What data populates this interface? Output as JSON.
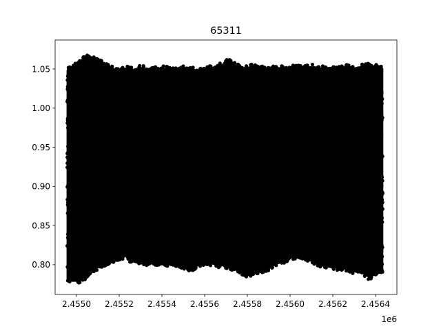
{
  "chart_data": {
    "type": "scatter",
    "title": "65311",
    "xlabel": "",
    "ylabel": "",
    "x_offset_label": "1e6",
    "xlim": [
      2.4549,
      2.4565
    ],
    "ylim": [
      0.762,
      1.087
    ],
    "x_ticks": [
      2.455,
      2.4552,
      2.4554,
      2.4556,
      2.4558,
      2.456,
      2.4562,
      2.4564
    ],
    "x_tick_labels": [
      "2.4550",
      "2.4552",
      "2.4554",
      "2.4556",
      "2.4558",
      "2.4560",
      "2.4562",
      "2.4564"
    ],
    "y_ticks": [
      0.8,
      0.85,
      0.9,
      0.95,
      1.0,
      1.05
    ],
    "y_tick_labels": [
      "0.80",
      "0.85",
      "0.90",
      "0.95",
      "1.00",
      "1.05"
    ],
    "grid": false,
    "marker_color": "#000000",
    "series": [
      {
        "segments": [
          {
            "x_start": 2.45496,
            "x_end": 2.45556,
            "y_min": 0.776,
            "y_max": 1.072
          },
          {
            "x_start": 2.45557,
            "x_end": 2.45632,
            "y_min": 0.782,
            "y_max": 1.064
          },
          {
            "x_start": 2.45633,
            "x_end": 2.45643,
            "y_min": 0.779,
            "y_max": 1.058
          }
        ],
        "envelope_top": [
          [
            2.45496,
            1.052
          ],
          [
            2.455,
            1.058
          ],
          [
            2.45503,
            1.065
          ],
          [
            2.45505,
            1.072
          ],
          [
            2.45508,
            1.066
          ],
          [
            2.45511,
            1.062
          ],
          [
            2.45514,
            1.057
          ],
          [
            2.45517,
            1.053
          ],
          [
            2.4552,
            1.05
          ],
          [
            2.45523,
            1.054
          ],
          [
            2.45526,
            1.052
          ],
          [
            2.4553,
            1.055
          ],
          [
            2.45535,
            1.053
          ],
          [
            2.4554,
            1.054
          ],
          [
            2.45545,
            1.052
          ],
          [
            2.4555,
            1.054
          ],
          [
            2.45555,
            1.052
          ],
          [
            2.45557,
            1.05
          ],
          [
            2.4556,
            1.052
          ],
          [
            2.45565,
            1.056
          ],
          [
            2.45568,
            1.058
          ],
          [
            2.45571,
            1.064
          ],
          [
            2.45574,
            1.058
          ],
          [
            2.45578,
            1.054
          ],
          [
            2.45582,
            1.056
          ],
          [
            2.45586,
            1.054
          ],
          [
            2.4559,
            1.052
          ],
          [
            2.45594,
            1.055
          ],
          [
            2.45598,
            1.053
          ],
          [
            2.45602,
            1.055
          ],
          [
            2.45606,
            1.054
          ],
          [
            2.4561,
            1.056
          ],
          [
            2.45614,
            1.054
          ],
          [
            2.45618,
            1.055
          ],
          [
            2.45622,
            1.052
          ],
          [
            2.45626,
            1.056
          ],
          [
            2.4563,
            1.054
          ],
          [
            2.45633,
            1.056
          ],
          [
            2.45636,
            1.058
          ],
          [
            2.4564,
            1.056
          ],
          [
            2.45643,
            1.054
          ]
        ],
        "envelope_bottom": [
          [
            2.45496,
            0.778
          ],
          [
            2.45499,
            0.775
          ],
          [
            2.45502,
            0.777
          ],
          [
            2.45505,
            0.78
          ],
          [
            2.45508,
            0.79
          ],
          [
            2.45512,
            0.797
          ],
          [
            2.45516,
            0.8
          ],
          [
            2.4552,
            0.806
          ],
          [
            2.45523,
            0.808
          ],
          [
            2.45526,
            0.801
          ],
          [
            2.4553,
            0.798
          ],
          [
            2.45535,
            0.8
          ],
          [
            2.4554,
            0.797
          ],
          [
            2.45545,
            0.799
          ],
          [
            2.4555,
            0.795
          ],
          [
            2.45555,
            0.79
          ],
          [
            2.45557,
            0.797
          ],
          [
            2.45561,
            0.8
          ],
          [
            2.45565,
            0.797
          ],
          [
            2.4557,
            0.795
          ],
          [
            2.45575,
            0.792
          ],
          [
            2.45578,
            0.786
          ],
          [
            2.45581,
            0.783
          ],
          [
            2.45584,
            0.788
          ],
          [
            2.45588,
            0.79
          ],
          [
            2.45592,
            0.796
          ],
          [
            2.45596,
            0.8
          ],
          [
            2.456,
            0.806
          ],
          [
            2.45604,
            0.808
          ],
          [
            2.45608,
            0.804
          ],
          [
            2.45612,
            0.8
          ],
          [
            2.45616,
            0.795
          ],
          [
            2.4562,
            0.793
          ],
          [
            2.45625,
            0.792
          ],
          [
            2.4563,
            0.788
          ],
          [
            2.45634,
            0.786
          ],
          [
            2.45637,
            0.781
          ],
          [
            2.4564,
            0.785
          ],
          [
            2.45643,
            0.79
          ]
        ]
      }
    ]
  }
}
